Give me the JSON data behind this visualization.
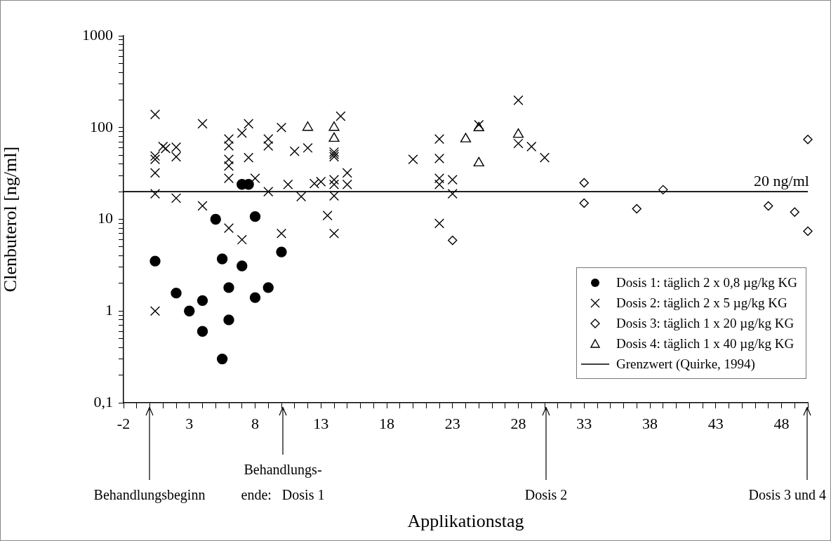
{
  "chart_data": {
    "type": "scatter",
    "xlabel": "Applikationstag",
    "ylabel": "Clenbuterol [ng/ml]",
    "xlim": [
      -2,
      50
    ],
    "ylim": [
      0.1,
      1000
    ],
    "log": "y",
    "grid": false,
    "legend": "bottom right",
    "xticks": [
      -2,
      {
        "value": -1,
        "label": null
      },
      {
        "value": 0,
        "label": null
      },
      {
        "value": 1,
        "label": null
      },
      {
        "value": 2,
        "label": null
      },
      3,
      {
        "value": 4,
        "label": null
      },
      {
        "value": 5,
        "label": null
      },
      {
        "value": 6,
        "label": null
      },
      {
        "value": 7,
        "label": null
      },
      8,
      {
        "value": 9,
        "label": null
      },
      {
        "value": 10,
        "label": null
      },
      {
        "value": 11,
        "label": null
      },
      {
        "value": 12,
        "label": null
      },
      13,
      {
        "value": 14,
        "label": null
      },
      {
        "value": 15,
        "label": null
      },
      {
        "value": 16,
        "label": null
      },
      {
        "value": 17,
        "label": null
      },
      18,
      {
        "value": 19,
        "label": null
      },
      {
        "value": 20,
        "label": null
      },
      {
        "value": 21,
        "label": null
      },
      {
        "value": 22,
        "label": null
      },
      23,
      {
        "value": 24,
        "label": null
      },
      {
        "value": 25,
        "label": null
      },
      {
        "value": 26,
        "label": null
      },
      {
        "value": 27,
        "label": null
      },
      28,
      {
        "value": 29,
        "label": null
      },
      {
        "value": 30,
        "label": null
      },
      {
        "value": 31,
        "label": null
      },
      {
        "value": 32,
        "label": null
      },
      33,
      {
        "value": 34,
        "label": null
      },
      {
        "value": 35,
        "label": null
      },
      {
        "value": 36,
        "label": null
      },
      {
        "value": 37,
        "label": null
      },
      38,
      {
        "value": 39,
        "label": null
      },
      {
        "value": 40,
        "label": null
      },
      {
        "value": 41,
        "label": null
      },
      {
        "value": 42,
        "label": null
      },
      43,
      {
        "value": 44,
        "label": null
      },
      {
        "value": 45,
        "label": null
      },
      {
        "value": 46,
        "label": null
      },
      {
        "value": 47,
        "label": null
      },
      48,
      {
        "value": 49,
        "label": null
      },
      {
        "value": 50,
        "label": null
      }
    ],
    "yticks": [
      {
        "value": 0.1,
        "label": "0,1"
      },
      {
        "value": 0.2,
        "label": null
      },
      {
        "value": 0.3,
        "label": null
      },
      {
        "value": 0.4,
        "label": null
      },
      {
        "value": 0.5,
        "label": null
      },
      {
        "value": 0.6,
        "label": null
      },
      {
        "value": 0.7,
        "label": null
      },
      {
        "value": 0.8,
        "label": null
      },
      {
        "value": 0.9,
        "label": null
      },
      1,
      {
        "value": 2,
        "label": null
      },
      {
        "value": 3,
        "label": null
      },
      {
        "value": 4,
        "label": null
      },
      {
        "value": 5,
        "label": null
      },
      {
        "value": 6,
        "label": null
      },
      {
        "value": 7,
        "label": null
      },
      {
        "value": 8,
        "label": null
      },
      {
        "value": 9,
        "label": null
      },
      10,
      {
        "value": 20,
        "label": null
      },
      {
        "value": 30,
        "label": null
      },
      {
        "value": 40,
        "label": null
      },
      {
        "value": 50,
        "label": null
      },
      {
        "value": 60,
        "label": null
      },
      {
        "value": 70,
        "label": null
      },
      {
        "value": 80,
        "label": null
      },
      {
        "value": 90,
        "label": null
      },
      100,
      {
        "value": 200,
        "label": null
      },
      {
        "value": 300,
        "label": null
      },
      {
        "value": 400,
        "label": null
      },
      {
        "value": 500,
        "label": null
      },
      {
        "value": 600,
        "label": null
      },
      {
        "value": 700,
        "label": null
      },
      {
        "value": 800,
        "label": null
      },
      {
        "value": 900,
        "label": null
      },
      1000
    ],
    "series": [
      {
        "name": "Dosis 1: täglich 2 x 0,8 µg/kg KG",
        "color": "#000000",
        "marker": "circle",
        "x": [
          0.4,
          2,
          3,
          4,
          4,
          5,
          5.5,
          5.5,
          6,
          6,
          7,
          7.5,
          7,
          8,
          8,
          9,
          10
        ],
        "values": [
          3.5,
          1.57,
          1.0,
          1.3,
          0.6,
          10,
          3.7,
          0.3,
          1.8,
          0.8,
          24,
          24,
          3.1,
          10.7,
          1.4,
          1.8,
          4.4
        ]
      },
      {
        "name": "Dosis 2: täglich 2 x 5 µg/kg KG",
        "color": "#000000",
        "marker": "cross",
        "x": [
          0.4,
          0.4,
          0.4,
          0.4,
          0.4,
          0.4,
          1,
          1.2,
          2,
          2,
          2,
          4,
          4,
          6,
          6,
          6,
          6,
          6,
          6,
          7,
          7,
          7.5,
          7.5,
          8,
          9,
          9,
          9,
          10,
          10,
          10.5,
          11,
          11.5,
          12,
          12.5,
          13,
          13.5,
          14.5,
          14,
          14,
          14,
          14,
          14,
          14,
          14,
          15,
          15,
          20,
          22,
          22,
          22,
          22,
          22,
          23,
          23,
          25,
          28,
          28,
          29,
          30
        ],
        "values": [
          139,
          49,
          45,
          32,
          19,
          1.0,
          62,
          59,
          61,
          48,
          17,
          110,
          14,
          75,
          63,
          45,
          38,
          28,
          8,
          87,
          6,
          110,
          47,
          28,
          75,
          63,
          20,
          100,
          7,
          24,
          55,
          17.7,
          60,
          24.5,
          25.7,
          11,
          133,
          54,
          51,
          48,
          27,
          24,
          18,
          7,
          32,
          24,
          45,
          75,
          46,
          28,
          24,
          9,
          27,
          19,
          107,
          198,
          67,
          62,
          47
        ]
      },
      {
        "name": "Dosis 3: täglich 1 x 20 µg/kg KG",
        "color": "#000000",
        "marker": "diamond",
        "x": [
          23,
          33,
          33,
          37,
          39,
          47,
          49,
          50,
          50
        ],
        "values": [
          5.9,
          25,
          15,
          13,
          21,
          14,
          12,
          74,
          7.4
        ]
      },
      {
        "name": "Dosis 4: täglich 1 x 40 µg/kg KG",
        "color": "#000000",
        "marker": "triangle",
        "x": [
          12,
          14,
          14,
          24,
          25,
          25,
          28
        ],
        "values": [
          100,
          100,
          76,
          75,
          99,
          41,
          84
        ]
      },
      {
        "name": "Grenzwert (Quirke, 1994)",
        "type": "line",
        "color": "#000000",
        "line_style": "solid",
        "x": [
          -2,
          50
        ],
        "values": [
          20,
          20
        ]
      }
    ],
    "annotations": [
      {
        "text": "20 ng/ml",
        "x": 48,
        "y": 20
      },
      "Behandlungsbeginn",
      "Behandlungs-\nende:   Dosis 1",
      "Dosis 2",
      "Dosis 3 und 4"
    ]
  }
}
